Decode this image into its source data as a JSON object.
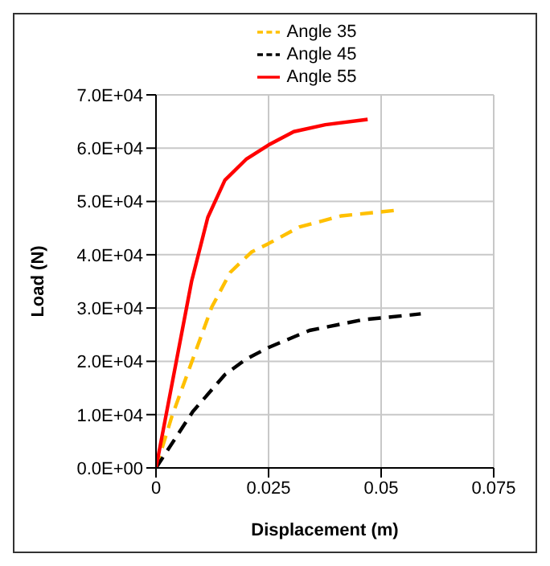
{
  "chart_data": {
    "type": "line",
    "xlabel": "Displacement (m)",
    "ylabel": "Load (N)",
    "xlim": [
      0,
      0.075
    ],
    "xticks": [
      0,
      0.025,
      0.05,
      0.075
    ],
    "ylim": [
      0,
      70000
    ],
    "yticks": [
      {
        "value": 0,
        "label": "0.0E+00"
      },
      {
        "value": 10000,
        "label": "1.0E+04"
      },
      {
        "value": 20000,
        "label": "2.0E+04"
      },
      {
        "value": 30000,
        "label": "3.0E+04"
      },
      {
        "value": 40000,
        "label": "4.0E+04"
      },
      {
        "value": 50000,
        "label": "5.0E+04"
      },
      {
        "value": 60000,
        "label": "6.0E+04"
      },
      {
        "value": 70000,
        "label": "7.0E+04"
      }
    ],
    "grid": true,
    "legend": "top",
    "marker": "none",
    "series": [
      {
        "name": "Angle 35",
        "color": "#ffc000",
        "line_style": "dashed",
        "x": [
          0,
          0.0035,
          0.0124,
          0.0165,
          0.0212,
          0.025,
          0.0318,
          0.0412,
          0.054
        ],
        "values": [
          0,
          9600,
          30200,
          36700,
          40500,
          42100,
          45200,
          47300,
          48400
        ]
      },
      {
        "name": "Angle 45",
        "color": "#000000",
        "line_style": "dashed",
        "x": [
          0,
          0.0082,
          0.0153,
          0.02,
          0.025,
          0.0341,
          0.0459,
          0.0588
        ],
        "values": [
          0,
          10600,
          17500,
          20400,
          22600,
          25800,
          27800,
          28900
        ]
      },
      {
        "name": "Angle 55",
        "color": "#ff0000",
        "line_style": "solid",
        "x": [
          0,
          0.0079,
          0.0115,
          0.0153,
          0.02,
          0.025,
          0.0306,
          0.0376,
          0.047
        ],
        "values": [
          0,
          35000,
          47000,
          54000,
          57900,
          60600,
          63100,
          64400,
          65400
        ]
      }
    ]
  }
}
